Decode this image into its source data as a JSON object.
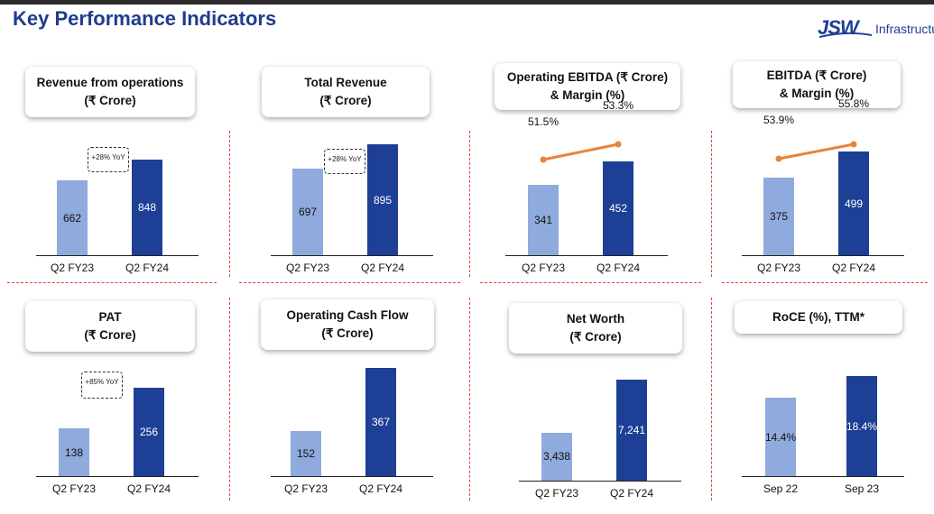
{
  "header": {
    "title": "Key Performance Indicators",
    "logo_mark": "JSW",
    "logo_text": "Infrastructure"
  },
  "chart_data": [
    {
      "type": "bar",
      "title": "Revenue from operations\n(₹ Crore)",
      "categories": [
        "Q2 FY23",
        "Q2 FY24"
      ],
      "values": [
        662,
        848
      ],
      "value_labels": [
        "662",
        "848"
      ],
      "annotation": "+28% YoY"
    },
    {
      "type": "bar",
      "title": "Total Revenue\n(₹ Crore)",
      "categories": [
        "Q2 FY23",
        "Q2 FY24"
      ],
      "values": [
        697,
        895
      ],
      "value_labels": [
        "697",
        "895"
      ],
      "annotation": "+28% YoY"
    },
    {
      "type": "bar",
      "title": "Operating EBITDA (₹ Crore)\n& Margin (%)",
      "categories": [
        "Q2 FY23",
        "Q2 FY24"
      ],
      "values": [
        341,
        452
      ],
      "value_labels": [
        "341",
        "452"
      ],
      "margin_values": [
        51.5,
        53.3
      ],
      "margin_labels": [
        "51.5%",
        "53.3%"
      ]
    },
    {
      "type": "bar",
      "title": "EBITDA (₹ Crore)\n& Margin (%)",
      "categories": [
        "Q2 FY23",
        "Q2 FY24"
      ],
      "values": [
        375,
        499
      ],
      "value_labels": [
        "375",
        "499"
      ],
      "margin_values": [
        53.9,
        55.8
      ],
      "margin_labels": [
        "53.9%",
        "55.8%"
      ]
    },
    {
      "type": "bar",
      "title": "PAT\n(₹ Crore)",
      "categories": [
        "Q2 FY23",
        "Q2 FY24"
      ],
      "values": [
        138,
        256
      ],
      "value_labels": [
        "138",
        "256"
      ],
      "annotation": "+85% YoY"
    },
    {
      "type": "bar",
      "title": "Operating Cash Flow\n(₹ Crore)",
      "categories": [
        "Q2 FY23",
        "Q2 FY24"
      ],
      "values": [
        152,
        367
      ],
      "value_labels": [
        "152",
        "367"
      ]
    },
    {
      "type": "bar",
      "title": "Net Worth\n(₹ Crore)",
      "categories": [
        "Q2 FY23",
        "Q2 FY24"
      ],
      "values": [
        3438,
        7241
      ],
      "value_labels": [
        "3,438",
        "7,241"
      ]
    },
    {
      "type": "bar",
      "title": "RoCE (%), TTM*",
      "categories": [
        "Sep 22",
        "Sep 23"
      ],
      "values": [
        14.4,
        18.4
      ],
      "value_labels": [
        "14.4%",
        "18.4%"
      ]
    }
  ],
  "colors": {
    "title": "#1f3c8f",
    "previous_bar": "#8faadc",
    "current_bar": "#1d3f95",
    "margin_line": "#e8833a",
    "separator": "#e0443a"
  }
}
